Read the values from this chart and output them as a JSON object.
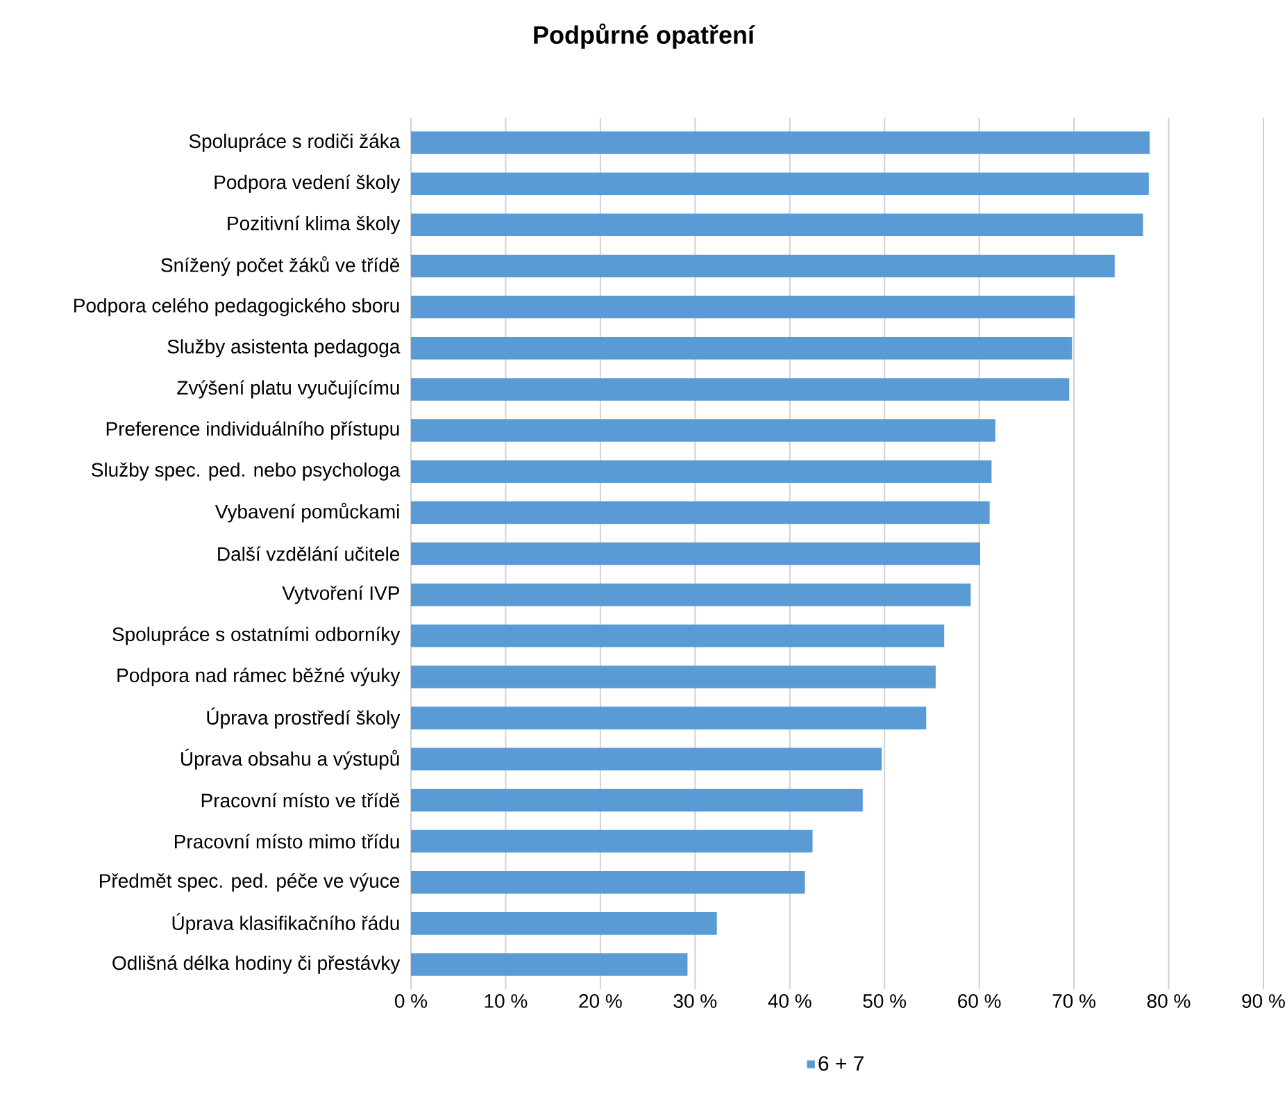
{
  "chart_data": {
    "type": "bar",
    "orientation": "horizontal",
    "title": "Podpůrné opatření",
    "categories": [
      "Spolupráce s rodiči žáka",
      "Podpora vedení školy",
      "Pozitivní klima školy",
      "Snížený počet žáků ve třídě",
      "Podpora celého pedagogického sboru",
      "Služby asistenta pedagoga",
      "Zvýšení platu vyučujícímu",
      "Preference individuálního přístupu",
      "Služby spec. ped. nebo psychologa",
      "Vybavení pomůckami",
      "Další vzdělání učitele",
      "Vytvoření IVP",
      "Spolupráce s ostatními odborníky",
      "Podpora nad rámec běžné výuky",
      "Úprava prostředí školy",
      "Úprava obsahu a výstupů",
      "Pracovní místo ve třídě",
      "Pracovní místo mimo třídu",
      "Předmět spec. ped. péče ve výuce",
      "Úprava klasifikačního řádu",
      "Odlišná délka hodiny či přestávky"
    ],
    "series": [
      {
        "name": "6 + 7",
        "color": "#5b9bd5",
        "values": [
          78,
          77.9,
          77.3,
          74.3,
          70.1,
          69.8,
          69.5,
          61.7,
          61.3,
          61.1,
          60.1,
          59.1,
          56.3,
          55.4,
          54.4,
          49.7,
          47.7,
          42.4,
          41.6,
          32.3,
          29.2
        ]
      }
    ],
    "xlim": [
      0,
      90
    ],
    "xticks": [
      {
        "value": 0,
        "label": "0 %"
      },
      {
        "value": 10,
        "label": "10 %"
      },
      {
        "value": 20,
        "label": "20 %"
      },
      {
        "value": 30,
        "label": "30 %"
      },
      {
        "value": 40,
        "label": "40 %"
      },
      {
        "value": 50,
        "label": "50 %"
      },
      {
        "value": 60,
        "label": "60 %"
      },
      {
        "value": 70,
        "label": "70 %"
      },
      {
        "value": 80,
        "label": "80 %"
      },
      {
        "value": 90,
        "label": "90 %"
      }
    ],
    "grid": "x",
    "legend": "bottom"
  }
}
